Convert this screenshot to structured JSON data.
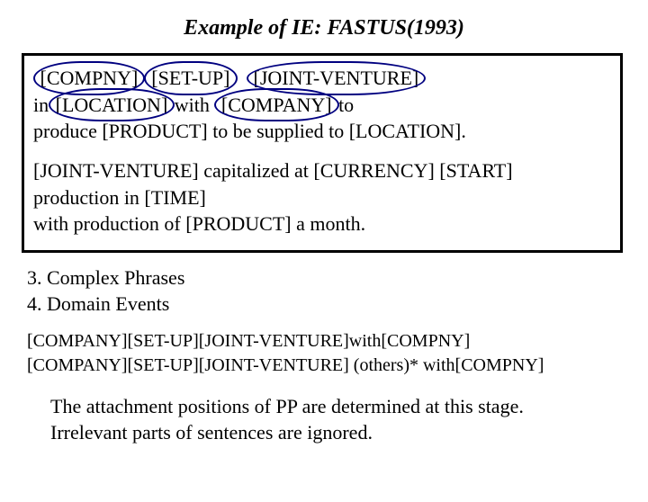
{
  "title": "Example of IE: FASTUS(1993)",
  "colors": {
    "circle": "#000080",
    "text": "#000000",
    "background": "#ffffff",
    "border": "#000000"
  },
  "box": {
    "p1": {
      "t1": "[COMPNY]",
      "t2": "[SET-UP]",
      "t3": "[JOINT-VENTURE]",
      "t4": " in ",
      "t5": "[LOCATION]",
      "t6": " with ",
      "t7": "[COMPANY]",
      "t8": "  to",
      "t9": "produce [PRODUCT]  to be supplied to [LOCATION]."
    },
    "p2": {
      "l1": "[JOINT-VENTURE] capitalized at [CURRENCY] [START]",
      "l2": "production in [TIME]",
      "l3": "with production of [PRODUCT] a month."
    }
  },
  "section": {
    "l1": "3. Complex Phrases",
    "l2": "4. Domain Events"
  },
  "patterns": {
    "l1": "[COMPANY][SET-UP][JOINT-VENTURE]with[COMPNY]",
    "l2": "[COMPANY][SET-UP][JOINT-VENTURE] (others)* with[COMPNY]"
  },
  "note": {
    "l1": "The attachment positions of PP are determined at this stage.",
    "l2": "Irrelevant parts of sentences are ignored."
  }
}
